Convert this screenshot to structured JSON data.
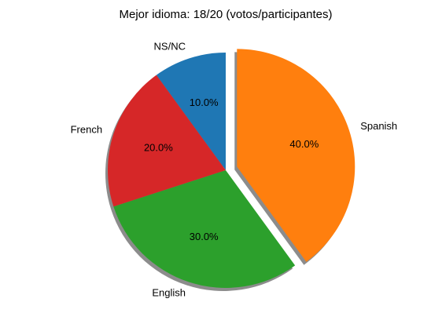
{
  "chart_data": {
    "type": "pie",
    "title": "Mejor idioma: 18/20 (votos/participantes)",
    "slices": [
      {
        "label": "NS/NC",
        "value": 10,
        "pct_label": "10.0%",
        "color": "#1f77b4",
        "exploded": false
      },
      {
        "label": "French",
        "value": 20,
        "pct_label": "20.0%",
        "color": "#d62728",
        "exploded": false
      },
      {
        "label": "English",
        "value": 30,
        "pct_label": "30.0%",
        "color": "#2ca02c",
        "exploded": false
      },
      {
        "label": "Spanish",
        "value": 40,
        "pct_label": "40.0%",
        "color": "#ff7f0e",
        "exploded": true
      }
    ],
    "start_angle_deg": 90,
    "direction": "counterclockwise",
    "shadow": true,
    "legend": false
  }
}
